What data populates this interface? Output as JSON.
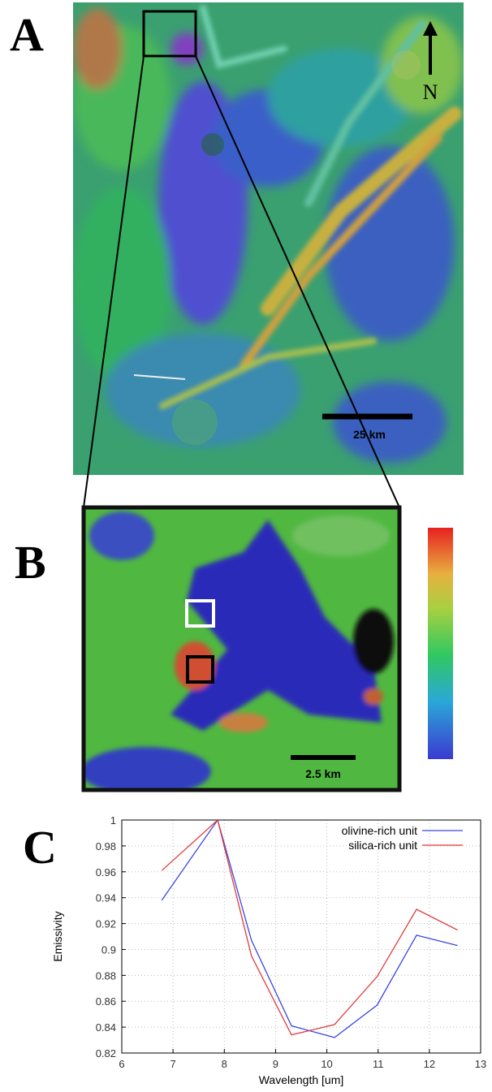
{
  "panel_a": {
    "label": "A",
    "scale_bar": "25 km",
    "north": "N"
  },
  "panel_b": {
    "label": "B",
    "scale_bar": "2.5 km"
  },
  "panel_c": {
    "label": "C"
  },
  "chart_data": {
    "type": "line",
    "x": [
      6.78,
      7.87,
      8.53,
      9.31,
      10.15,
      10.98,
      11.75,
      12.55
    ],
    "series": [
      {
        "name": "olivine-rich unit",
        "color": "#3a48e0",
        "values": [
          0.938,
          1.0,
          0.907,
          0.841,
          0.832,
          0.857,
          0.911,
          0.903
        ]
      },
      {
        "name": "silica-rich unit",
        "color": "#e23a3a",
        "values": [
          0.961,
          1.0,
          0.895,
          0.834,
          0.842,
          0.879,
          0.931,
          0.915
        ]
      }
    ],
    "x_label": "Wavelength [um]",
    "y_label": "Emissivity",
    "xlim": [
      6,
      13
    ],
    "xticks": [
      6,
      7,
      8,
      9,
      10,
      11,
      12,
      13
    ],
    "ylim": [
      0.82,
      1
    ],
    "yticks": [
      0.82,
      0.84,
      0.86,
      0.88,
      0.9,
      0.92,
      0.94,
      0.96,
      0.98,
      1
    ],
    "grid": true,
    "legend": "top-right"
  }
}
